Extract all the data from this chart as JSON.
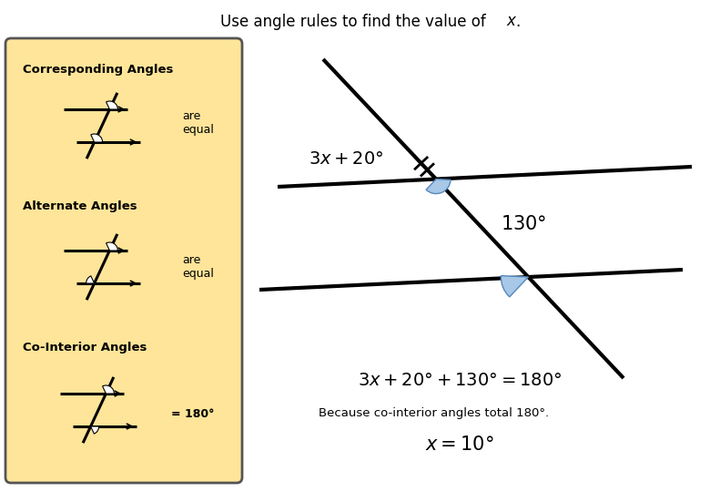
{
  "title": "Use angle rules to find the value of ",
  "title_x_italic": "x",
  "bg_color": "#ffffff",
  "box_color": "#FFE599",
  "box_edge_color": "#555555",
  "angle_blue": "#a8c8e8",
  "angle_blue_edge": "#5588bb",
  "corr_title": "Corresponding Angles",
  "corr_label": "are\nequal",
  "alt_title": "Alternate Angles",
  "alt_label": "are\nequal",
  "coint_title": "Co-Interior Angles",
  "coint_label": "= 180°",
  "because_text": "Because co-interior angles total 180°.",
  "lw_main": 2.5,
  "lw_thick": 3.0
}
